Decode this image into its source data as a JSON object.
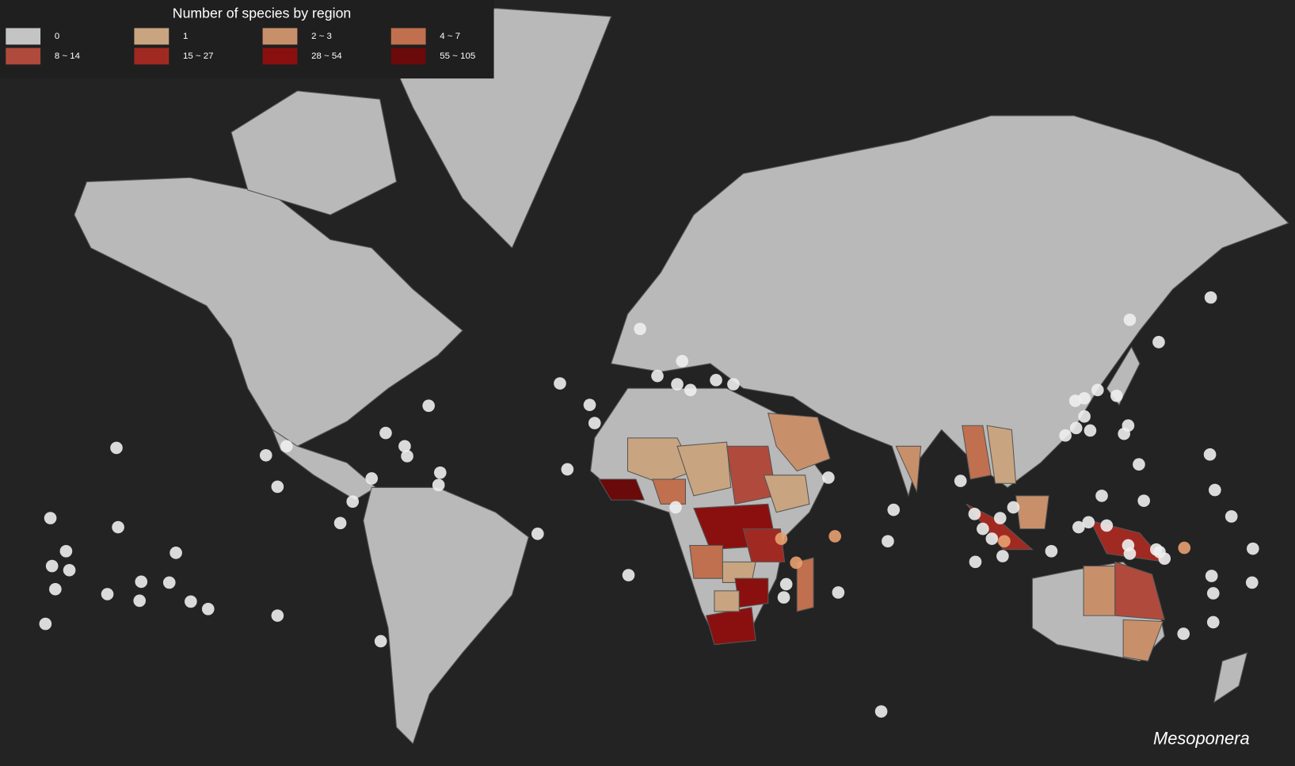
{
  "legend": {
    "title": "Number of species by region",
    "items": [
      {
        "label": "0",
        "color": "#c4c4c4"
      },
      {
        "label": "1",
        "color": "#c8a580"
      },
      {
        "label": "2 ~ 3",
        "color": "#c8906a"
      },
      {
        "label": "4 ~ 7",
        "color": "#c0704e"
      },
      {
        "label": "8 ~ 14",
        "color": "#b04a3c"
      },
      {
        "label": "15 ~ 27",
        "color": "#a02a22"
      },
      {
        "label": "28 ~ 54",
        "color": "#8a1010"
      },
      {
        "label": "55 ~ 105",
        "color": "#6a0a0a"
      }
    ]
  },
  "caption": "Mesoponera"
}
